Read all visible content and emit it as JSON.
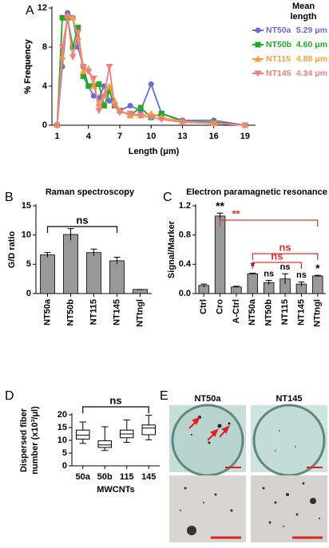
{
  "chart_data": [
    {
      "type": "line",
      "panel": "A",
      "xlabel": "Length (μm)",
      "ylabel": "% Frequency",
      "legend_title": [
        "Mean",
        "length"
      ],
      "x": [
        1,
        1.5,
        2,
        2.5,
        3,
        3.5,
        4,
        4.5,
        5,
        5.5,
        6,
        6.5,
        7,
        8,
        9,
        10,
        11,
        13,
        16,
        19
      ],
      "series": [
        {
          "name": "NT50a",
          "mean_label": "5.29 μm",
          "color": "#6b6bd6",
          "marker": "circle",
          "values": [
            0,
            6,
            11.5,
            11,
            8,
            6,
            4,
            3,
            2.8,
            4,
            2.5,
            2.2,
            1.5,
            2,
            1.5,
            4.2,
            1.2,
            0.5,
            0.5,
            0
          ]
        },
        {
          "name": "NT50b",
          "mean_label": "4.60 μm",
          "color": "#22aa22",
          "marker": "square",
          "values": [
            0,
            11,
            11,
            8,
            10,
            5,
            4,
            4,
            4.2,
            2,
            3.5,
            2,
            1.5,
            1,
            1.8,
            0.8,
            1.2,
            0.4,
            0.3,
            0
          ]
        },
        {
          "name": "NT115",
          "mean_label": "4.88 μm",
          "color": "#f5a040",
          "marker": "triangle-up",
          "values": [
            0,
            7,
            11.2,
            11,
            9,
            5.5,
            5.8,
            4,
            2.2,
            3,
            4,
            2.5,
            1.5,
            1,
            1,
            1.2,
            0.8,
            0.4,
            0.2,
            0
          ]
        },
        {
          "name": "NT145",
          "mean_label": "4.34 μm",
          "color": "#f08080",
          "marker": "triangle-down",
          "values": [
            0,
            8,
            11,
            7,
            9.5,
            6,
            5.5,
            4.8,
            1.5,
            3,
            6,
            2,
            1.3,
            1.2,
            1,
            0.8,
            0.6,
            0.3,
            0.2,
            0
          ]
        }
      ],
      "xlim": [
        0.5,
        20
      ],
      "xticks": [
        1,
        4,
        7,
        10,
        13,
        16,
        19
      ],
      "ylim": [
        0,
        12
      ],
      "yticks": [
        0,
        4,
        8,
        12
      ]
    },
    {
      "type": "bar",
      "panel": "B",
      "title": "Raman spectroscopy",
      "ylabel": "G/D ratio",
      "color": "#999999",
      "categories": [
        "NT50a",
        "NT50b",
        "NT115",
        "NT145",
        "NTtngl"
      ],
      "values": [
        6.6,
        10.1,
        7.0,
        5.6,
        0.7
      ],
      "errors": [
        0.4,
        1.0,
        0.6,
        0.6,
        0
      ],
      "ylim": [
        0,
        15
      ],
      "yticks": [
        0,
        5,
        10,
        15
      ],
      "brackets": [
        {
          "text": "ns",
          "from": "NT50a",
          "to": "NT145",
          "color": "#000000"
        }
      ]
    },
    {
      "type": "bar",
      "panel": "C",
      "title": "Electron paramagnetic resonance",
      "ylabel": "Signal/Marker",
      "color": "#999999",
      "categories": [
        "Ctrl",
        "Cro",
        "A-Ctrl",
        "NT50a",
        "NT50b",
        "NT115",
        "NT145",
        "NTtngl"
      ],
      "values": [
        0.11,
        1.06,
        0.09,
        0.27,
        0.15,
        0.2,
        0.13,
        0.24
      ],
      "errors": [
        0.02,
        0.04,
        0.01,
        0.01,
        0.03,
        0.07,
        0.03,
        0.01
      ],
      "significance": [
        null,
        "**",
        null,
        "*",
        "ns",
        "ns",
        "ns",
        "*"
      ],
      "ylim": [
        0,
        1.2
      ],
      "yticks": [
        {
          "value": 0,
          "label": "0.0"
        },
        0.4,
        0.8,
        1.2
      ],
      "brackets": [
        {
          "text": "**",
          "from": "Cro",
          "to": "NTtngl",
          "color": "#e03030"
        },
        {
          "text": "ns",
          "from": "NT50a",
          "to": "NTtngl",
          "color": "#e03030"
        },
        {
          "text": "ns",
          "from": "NT50a",
          "to": "NT145",
          "color": "#e03030"
        }
      ]
    },
    {
      "type": "box",
      "panel": "D",
      "xlabel": "MWCNTs",
      "ylabel": [
        "Dispersed fiber",
        "number (x10³/μl)"
      ],
      "categories": [
        "50a",
        "50b",
        "115",
        "145"
      ],
      "min": [
        8.8,
        6,
        9.2,
        10.2
      ],
      "q1": [
        10.5,
        7.2,
        11,
        12.2
      ],
      "median": [
        12,
        8.2,
        12.5,
        14.8
      ],
      "q3": [
        14,
        9.8,
        14,
        16
      ],
      "max": [
        17.2,
        15.3,
        18,
        19.8
      ],
      "ylim": [
        0,
        20
      ],
      "yticks": [
        0,
        5,
        10,
        15,
        20
      ],
      "brackets": [
        {
          "text": "ns",
          "from": "50a",
          "to": "145",
          "color": "#000000"
        }
      ]
    }
  ],
  "figure_e": {
    "panel": "E",
    "labels": [
      "NT50a",
      "NT145"
    ]
  }
}
